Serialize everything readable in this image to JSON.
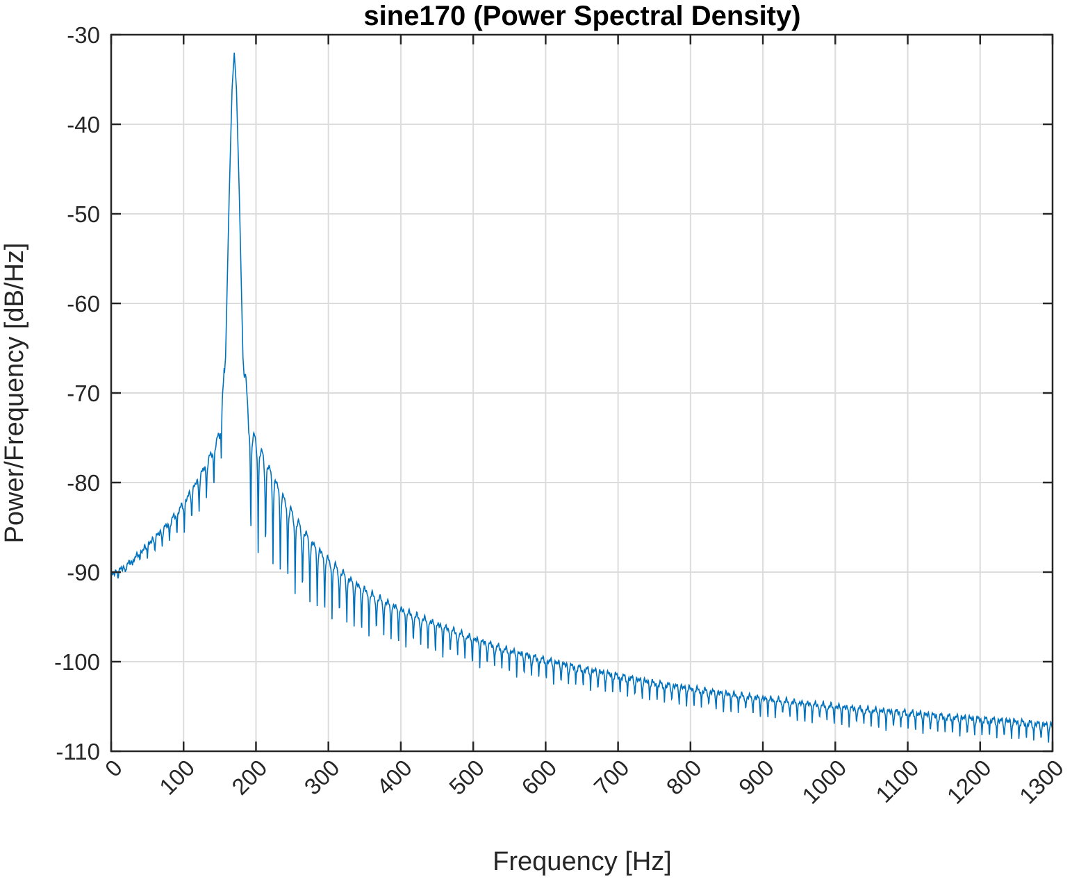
{
  "chart_data": {
    "type": "line",
    "title": "sine170 (Power Spectral Density)",
    "xlabel": "Frequency [Hz]",
    "ylabel": "Power/Frequency [dB/Hz]",
    "xlim": [
      0,
      1300
    ],
    "ylim": [
      -110,
      -30
    ],
    "xticks": [
      0,
      100,
      200,
      300,
      400,
      500,
      600,
      700,
      800,
      900,
      1000,
      1100,
      1200,
      1300
    ],
    "yticks": [
      -30,
      -40,
      -50,
      -60,
      -70,
      -80,
      -90,
      -100,
      -110
    ],
    "grid": true,
    "color": "#0072bd",
    "series": [
      {
        "name": "",
        "x": [
          0,
          20,
          40,
          60,
          80,
          100,
          120,
          140,
          150,
          158,
          163,
          167,
          170,
          173,
          177,
          182,
          190,
          200,
          220,
          240,
          260,
          280,
          300,
          330,
          360,
          400,
          450,
          500,
          550,
          600,
          650,
          700,
          750,
          800,
          850,
          900,
          950,
          1000,
          1050,
          1100,
          1150,
          1200,
          1250,
          1300
        ],
        "values": [
          -90.5,
          -89.5,
          -88,
          -86.5,
          -85,
          -83,
          -80.5,
          -77.5,
          -75.5,
          -66,
          -48,
          -36,
          -32,
          -36,
          -48,
          -66,
          -76.5,
          -78,
          -81,
          -84,
          -86.5,
          -88.5,
          -90,
          -92,
          -93.5,
          -95,
          -96.5,
          -98,
          -99.3,
          -100.3,
          -101.2,
          -102,
          -102.8,
          -103.4,
          -104,
          -104.5,
          -105,
          -105.4,
          -105.8,
          -106.1,
          -106.5,
          -106.8,
          -107.1,
          -107.5
        ]
      }
    ]
  }
}
